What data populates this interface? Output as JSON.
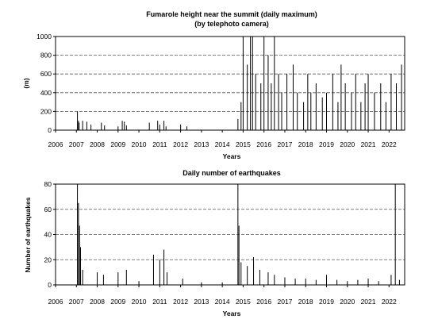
{
  "figure": {
    "background": "#ffffff",
    "ink_color": "#000000",
    "grid_color": "#555555"
  },
  "chart_data": [
    {
      "type": "bar",
      "title_lines": [
        "Fumarole height near the summit (daily maximum)",
        "(by telephoto camera)"
      ],
      "xlabel": "Years",
      "ylabel": "(m)",
      "xlim": [
        2006,
        2022.75
      ],
      "ylim": [
        0,
        1000
      ],
      "x_ticks": [
        2006,
        2007,
        2008,
        2009,
        2010,
        2011,
        2012,
        2013,
        2014,
        2015,
        2016,
        2017,
        2018,
        2019,
        2020,
        2021,
        2022
      ],
      "y_ticks": [
        0,
        200,
        400,
        600,
        800,
        1000
      ],
      "grid": "horizontal dashed",
      "series": [
        {
          "x": [
            2007.05,
            2007.1,
            2007.13,
            2007.3,
            2007.5,
            2007.7,
            2008.2,
            2008.35,
            2009.0,
            2009.2,
            2009.3,
            2009.4,
            2010.5,
            2010.9,
            2011.0,
            2011.2,
            2011.3,
            2012.0,
            2012.3,
            2014.75,
            2014.9,
            2015.0,
            2015.2,
            2015.35,
            2015.45,
            2015.6,
            2015.85,
            2016.0,
            2016.2,
            2016.35,
            2016.5,
            2016.7,
            2016.85,
            2017.1,
            2017.4,
            2017.6,
            2017.9,
            2018.1,
            2018.25,
            2018.5,
            2018.8,
            2019.0,
            2019.3,
            2019.55,
            2019.7,
            2019.9,
            2020.2,
            2020.4,
            2020.65,
            2020.85,
            2021.0,
            2021.3,
            2021.6,
            2021.85,
            2022.1,
            2022.35,
            2022.6
          ],
          "values": [
            200,
            100,
            80,
            100,
            90,
            60,
            80,
            50,
            40,
            100,
            90,
            50,
            80,
            100,
            60,
            100,
            40,
            60,
            40,
            120,
            300,
            1000,
            700,
            1000,
            1000,
            600,
            500,
            1000,
            800,
            500,
            1000,
            600,
            400,
            600,
            700,
            400,
            300,
            600,
            400,
            500,
            350,
            400,
            600,
            300,
            700,
            500,
            400,
            600,
            300,
            500,
            600,
            400,
            500,
            300,
            600,
            500,
            700
          ]
        }
      ]
    },
    {
      "type": "bar",
      "title": "Daily number of earthquakes",
      "xlabel": "Years",
      "ylabel": "Number of earthquakes",
      "xlim": [
        2006,
        2022.75
      ],
      "ylim": [
        0,
        80
      ],
      "x_ticks": [
        2006,
        2007,
        2008,
        2009,
        2010,
        2011,
        2012,
        2013,
        2014,
        2015,
        2016,
        2017,
        2018,
        2019,
        2020,
        2021,
        2022
      ],
      "y_ticks": [
        0,
        20,
        40,
        60,
        80
      ],
      "grid": "horizontal dashed",
      "series": [
        {
          "x": [
            2007.05,
            2007.1,
            2007.15,
            2007.2,
            2007.3,
            2008.0,
            2008.3,
            2009.0,
            2009.4,
            2010.0,
            2010.7,
            2011.0,
            2011.2,
            2011.35,
            2012.1,
            2013.0,
            2014.0,
            2014.75,
            2014.8,
            2014.9,
            2015.2,
            2015.5,
            2015.8,
            2016.2,
            2016.5,
            2017.0,
            2017.5,
            2018.0,
            2018.5,
            2019.0,
            2019.5,
            2020.0,
            2020.5,
            2021.0,
            2021.5,
            2022.1,
            2022.3,
            2022.5
          ],
          "values": [
            80,
            65,
            47,
            30,
            12,
            10,
            8,
            10,
            12,
            3,
            24,
            20,
            28,
            10,
            5,
            2,
            2,
            80,
            47,
            18,
            15,
            22,
            12,
            10,
            8,
            6,
            5,
            5,
            4,
            8,
            4,
            3,
            4,
            5,
            3,
            8,
            80,
            4
          ]
        }
      ]
    }
  ]
}
